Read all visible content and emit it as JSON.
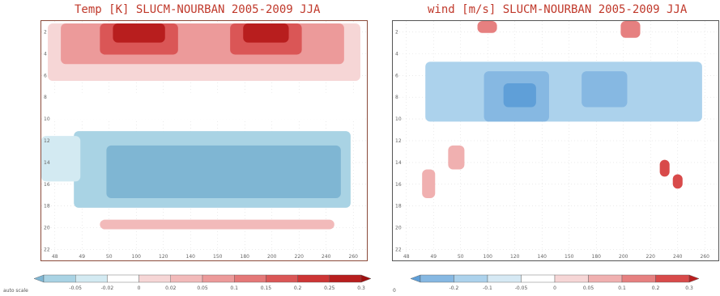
{
  "chart_data": [
    {
      "type": "heatmap",
      "title": "Temp [K] SLUCM-NOURBAN 2005-2009 JJA",
      "y_ticks": [
        "2",
        "4",
        "6",
        "8",
        "10",
        "12",
        "14",
        "16",
        "18",
        "20",
        "22"
      ],
      "x_ticks": [
        "48",
        "49",
        "50",
        "100",
        "120",
        "140",
        "150",
        "180",
        "200",
        "220",
        "240",
        "260"
      ],
      "colorbar_levels": [
        "-0.05",
        "-0.02",
        "0",
        "0.02",
        "0.05",
        "0.1",
        "0.15",
        "0.2",
        "0.25",
        "0.3",
        "0.4"
      ],
      "colorbar_colors": [
        "#7fb6d3",
        "#a9d3e4",
        "#d3eaf2",
        "#ffffff",
        "#f6d6d6",
        "#f2baba",
        "#ec9a9a",
        "#e47878",
        "#da5656",
        "#cd3535",
        "#b81e1e",
        "#9e1010"
      ],
      "colorbar_note": "auto scale",
      "regions": [
        {
          "x0": 0.02,
          "x1": 0.98,
          "y0": 0.99,
          "y1": 0.75,
          "level": 4
        },
        {
          "x0": 0.06,
          "x1": 0.93,
          "y0": 0.99,
          "y1": 0.82,
          "level": 6
        },
        {
          "x0": 0.18,
          "x1": 0.42,
          "y0": 0.99,
          "y1": 0.86,
          "level": 8
        },
        {
          "x0": 0.58,
          "x1": 0.8,
          "y0": 0.99,
          "y1": 0.86,
          "level": 8
        },
        {
          "x0": 0.22,
          "x1": 0.38,
          "y0": 0.99,
          "y1": 0.91,
          "level": 10
        },
        {
          "x0": 0.62,
          "x1": 0.76,
          "y0": 0.99,
          "y1": 0.91,
          "level": 10
        },
        {
          "x0": 0.0,
          "x1": 1.0,
          "y0": 0.7,
          "y1": 0.59,
          "level": 3
        },
        {
          "x0": 0.1,
          "x1": 0.95,
          "y0": 0.54,
          "y1": 0.22,
          "level": 1
        },
        {
          "x0": 0.0,
          "x1": 0.12,
          "y0": 0.52,
          "y1": 0.33,
          "level": 2
        },
        {
          "x0": 0.2,
          "x1": 0.92,
          "y0": 0.48,
          "y1": 0.26,
          "level": 0
        },
        {
          "x0": 0.18,
          "x1": 0.9,
          "y0": 0.17,
          "y1": 0.13,
          "level": 5
        }
      ]
    },
    {
      "type": "heatmap",
      "title": "wind [m/s] SLUCM-NOURBAN 2005-2009 JJA",
      "y_ticks": [
        "2",
        "4",
        "6",
        "8",
        "10",
        "12",
        "14",
        "16",
        "18",
        "20",
        "22"
      ],
      "x_ticks": [
        "48",
        "49",
        "50",
        "100",
        "120",
        "140",
        "150",
        "180",
        "200",
        "220",
        "240",
        "260"
      ],
      "colorbar_levels": [
        "-0.2",
        "-0.1",
        "-0.05",
        "0",
        "0.05",
        "0.1",
        "0.2",
        "0.3",
        "0.4"
      ],
      "colorbar_colors": [
        "#5f9fd8",
        "#86b8e2",
        "#acd2ec",
        "#d6e9f4",
        "#ffffff",
        "#f6d6d6",
        "#f0b0b0",
        "#e68080",
        "#d84a4a",
        "#b81e1e"
      ],
      "colorbar_note": "0",
      "regions": [
        {
          "x0": 0.1,
          "x1": 0.95,
          "y0": 0.83,
          "y1": 0.58,
          "level": 2
        },
        {
          "x0": 0.28,
          "x1": 0.48,
          "y0": 0.79,
          "y1": 0.58,
          "level": 1
        },
        {
          "x0": 0.58,
          "x1": 0.72,
          "y0": 0.79,
          "y1": 0.64,
          "level": 1
        },
        {
          "x0": 0.34,
          "x1": 0.44,
          "y0": 0.74,
          "y1": 0.64,
          "level": 0
        },
        {
          "x0": 0.09,
          "x1": 0.13,
          "y0": 0.38,
          "y1": 0.26,
          "level": 6
        },
        {
          "x0": 0.17,
          "x1": 0.22,
          "y0": 0.48,
          "y1": 0.38,
          "level": 6
        },
        {
          "x0": 0.26,
          "x1": 0.32,
          "y0": 1.0,
          "y1": 0.95,
          "level": 7
        },
        {
          "x0": 0.7,
          "x1": 0.76,
          "y0": 1.0,
          "y1": 0.93,
          "level": 7
        },
        {
          "x0": 0.82,
          "x1": 0.85,
          "y0": 0.42,
          "y1": 0.35,
          "level": 8
        },
        {
          "x0": 0.86,
          "x1": 0.89,
          "y0": 0.36,
          "y1": 0.3,
          "level": 8
        }
      ]
    }
  ]
}
